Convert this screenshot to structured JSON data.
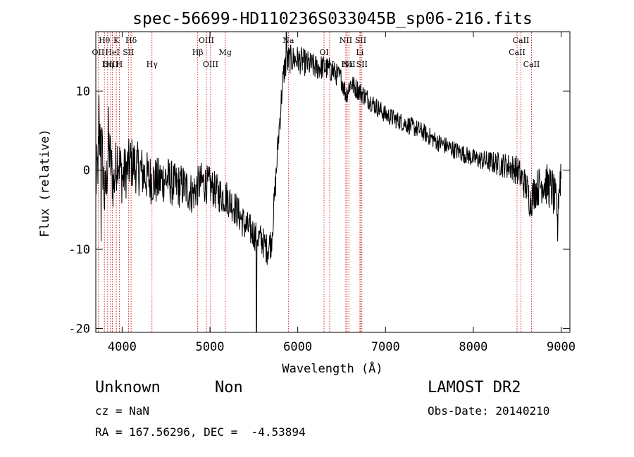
{
  "chart_data": {
    "type": "line",
    "title": "spec-56699-HD110236S033045B_sp06-216.fits",
    "xlabel": "Wavelength (Å)",
    "ylabel": "Flux (relative)",
    "xlim": [
      3700,
      9100
    ],
    "ylim": [
      -20.5,
      17.5
    ],
    "xticks": [
      4000,
      5000,
      6000,
      7000,
      8000,
      9000
    ],
    "yticks": [
      -20,
      -10,
      0,
      10
    ],
    "grid": false,
    "line_color": "#000000",
    "marker_color": "#cc0000",
    "spectrum_knots": [
      [
        3700,
        -2
      ],
      [
        3760,
        5
      ],
      [
        3800,
        -4
      ],
      [
        3850,
        3
      ],
      [
        3900,
        -2
      ],
      [
        3950,
        2
      ],
      [
        4000,
        -1
      ],
      [
        4100,
        1
      ],
      [
        4200,
        0
      ],
      [
        4300,
        -1
      ],
      [
        4400,
        -1.5
      ],
      [
        4500,
        -1
      ],
      [
        4600,
        -2
      ],
      [
        4700,
        -2
      ],
      [
        4800,
        -3
      ],
      [
        4900,
        -1.5
      ],
      [
        5000,
        -2
      ],
      [
        5100,
        -3
      ],
      [
        5200,
        -3.5
      ],
      [
        5300,
        -5
      ],
      [
        5400,
        -7
      ],
      [
        5500,
        -8
      ],
      [
        5600,
        -9
      ],
      [
        5650,
        -10
      ],
      [
        5700,
        -9
      ],
      [
        5740,
        -3
      ],
      [
        5780,
        4
      ],
      [
        5820,
        10
      ],
      [
        5850,
        13
      ],
      [
        5900,
        14
      ],
      [
        6000,
        14
      ],
      [
        6100,
        13.5
      ],
      [
        6200,
        13
      ],
      [
        6300,
        13
      ],
      [
        6400,
        12.5
      ],
      [
        6500,
        11.5
      ],
      [
        6550,
        9.5
      ],
      [
        6600,
        11
      ],
      [
        6700,
        10
      ],
      [
        6800,
        9
      ],
      [
        6900,
        8
      ],
      [
        7000,
        7
      ],
      [
        7200,
        6
      ],
      [
        7400,
        5
      ],
      [
        7600,
        3.5
      ],
      [
        7800,
        2.5
      ],
      [
        8000,
        1.5
      ],
      [
        8200,
        1
      ],
      [
        8400,
        0.5
      ],
      [
        8500,
        0
      ],
      [
        8600,
        -2
      ],
      [
        8650,
        -4
      ],
      [
        8700,
        -2.5
      ],
      [
        8800,
        -1.5
      ],
      [
        8900,
        -2.5
      ],
      [
        8950,
        -5
      ],
      [
        9000,
        0
      ]
    ],
    "spectrum_spikes": [
      {
        "x": 3735,
        "y": 9.5
      },
      {
        "x": 3760,
        "y": -9
      },
      {
        "x": 3845,
        "y": 8
      },
      {
        "x": 5530,
        "y": -20.5
      },
      {
        "x": 5870,
        "y": 17.5
      },
      {
        "x": 8960,
        "y": -9
      }
    ],
    "noise_amplitude": [
      [
        3700,
        3
      ],
      [
        4200,
        2.6
      ],
      [
        5000,
        1.9
      ],
      [
        5500,
        1.6
      ],
      [
        5800,
        1.5
      ],
      [
        6500,
        1.1
      ],
      [
        7000,
        0.9
      ],
      [
        8000,
        0.9
      ],
      [
        8400,
        1.3
      ],
      [
        9000,
        2.4
      ]
    ],
    "line_markers": [
      {
        "label": "Hθ",
        "x": 3798,
        "row": 1
      },
      {
        "label": "K",
        "x": 3934,
        "row": 1
      },
      {
        "label": "Hδ",
        "x": 4102,
        "row": 1
      },
      {
        "label": "OIII",
        "x": 4959,
        "row": 1
      },
      {
        "label": "Na",
        "x": 5893,
        "row": 1
      },
      {
        "label": "NII",
        "x": 6548,
        "row": 1
      },
      {
        "label": "SII",
        "x": 6717,
        "row": 1
      },
      {
        "label": "CaII",
        "x": 8542,
        "row": 1
      },
      {
        "label": "OII",
        "x": 3727,
        "row": 2
      },
      {
        "label": "HeI",
        "x": 3889,
        "row": 2
      },
      {
        "label": "SII",
        "x": 4072,
        "row": 2
      },
      {
        "label": "Hβ",
        "x": 4861,
        "row": 2
      },
      {
        "label": "Mg",
        "x": 5175,
        "row": 2
      },
      {
        "label": "OI",
        "x": 6300,
        "row": 2
      },
      {
        "label": "Li",
        "x": 6708,
        "row": 2
      },
      {
        "label": "CaII",
        "x": 8498,
        "row": 2
      },
      {
        "label": "OIII",
        "x": 3869,
        "row": 3
      },
      {
        "label": "Hη",
        "x": 3835,
        "row": 3
      },
      {
        "label": "H",
        "x": 3968,
        "row": 3
      },
      {
        "label": "Hγ",
        "x": 4340,
        "row": 3
      },
      {
        "label": "OIII",
        "x": 5007,
        "row": 3
      },
      {
        "label": "OI",
        "x": 6364,
        "row": 3
      },
      {
        "label": "Hα",
        "x": 6563,
        "row": 3
      },
      {
        "label": "NII",
        "x": 6583,
        "row": 3
      },
      {
        "label": "SII",
        "x": 6731,
        "row": 3
      },
      {
        "label": "CaII",
        "x": 8662,
        "row": 3
      }
    ]
  },
  "info": {
    "object_class": "Unknown",
    "subclass": "Non",
    "survey": "LAMOST DR2",
    "redshift": "cz = NaN",
    "obs_date": "Obs-Date: 20140210",
    "coords": "RA = 167.56296, DEC =  -4.53894"
  }
}
